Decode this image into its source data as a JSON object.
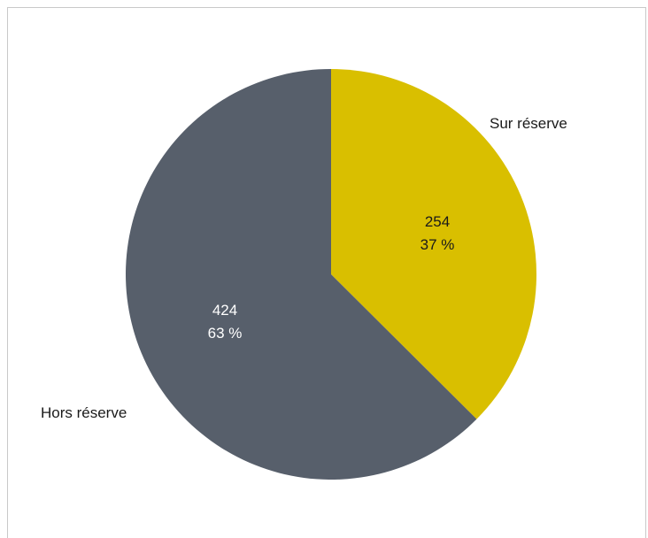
{
  "chart_data": {
    "type": "pie",
    "title": "",
    "slices": [
      {
        "label": "Sur réserve",
        "value": 254,
        "percent_label": "37 %",
        "color": "#d9bf00",
        "label_color": "#1a1a1a"
      },
      {
        "label": "Hors réserve",
        "value": 424,
        "percent_label": "63 %",
        "color": "#575f6b",
        "label_color": "#ffffff"
      }
    ],
    "start_angle": "12 o'clock",
    "direction": "clockwise",
    "legend": "none",
    "category_label_color": "#1a1a1a"
  }
}
